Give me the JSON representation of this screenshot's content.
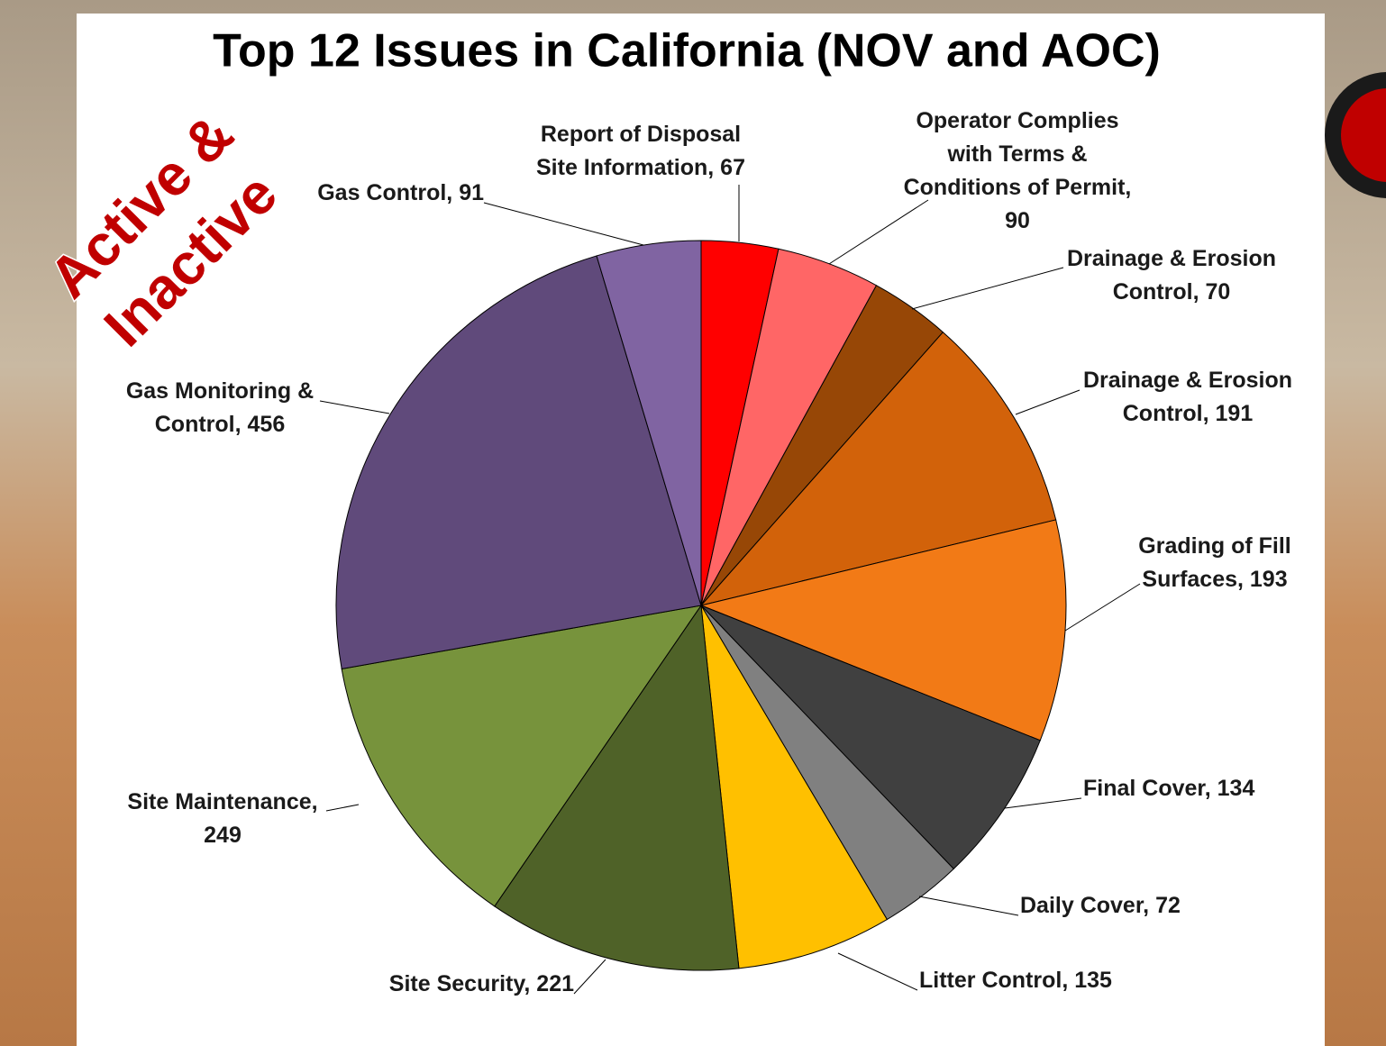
{
  "chart_data": {
    "type": "pie",
    "title": "Top 12 Issues in California (NOV and AOC)",
    "annotation": [
      "Active &",
      "Inactive"
    ],
    "values": [
      67,
      90,
      70,
      191,
      193,
      134,
      72,
      135,
      221,
      249,
      456,
      91
    ],
    "value_labels": [
      "Report of Disposal Site Information, 67",
      "Operator Complies with Terms & Conditions of Permit, 90",
      "Drainage & Erosion Control, 70",
      "Drainage & Erosion Control, 191",
      "Grading of Fill Surfaces, 193",
      "Final Cover, 134",
      "Daily Cover, 72",
      "Litter Control, 135",
      "Site Security, 221",
      "Site Maintenance, 249",
      "Gas Monitoring & Control, 456",
      "Gas Control, 91"
    ],
    "colors": [
      "#ff0000",
      "#ff6666",
      "#974706",
      "#d2620a",
      "#f27a16",
      "#404040",
      "#808080",
      "#ffc000",
      "#4f6228",
      "#77933c",
      "#604a7b",
      "#8064a2"
    ]
  }
}
